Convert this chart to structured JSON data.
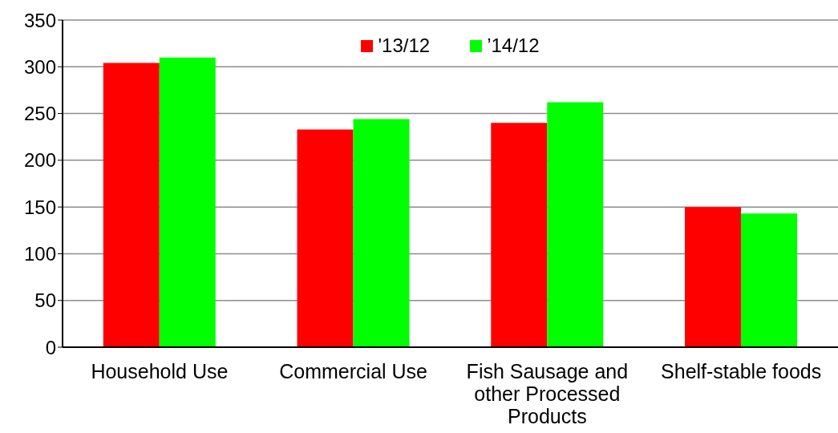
{
  "chart_data": {
    "type": "bar",
    "categories": [
      "Household Use",
      "Commercial Use",
      "Fish Sausage and other Processed Products",
      "Shelf-stable foods"
    ],
    "series": [
      {
        "name": "'13/12",
        "color": "#ff0000",
        "values": [
          304,
          233,
          240,
          150
        ]
      },
      {
        "name": "’14/12",
        "color": "#00ff00",
        "values": [
          310,
          244,
          262,
          143
        ]
      }
    ],
    "ylim": [
      0,
      350
    ],
    "yticks": [
      0,
      50,
      100,
      150,
      200,
      250,
      300,
      350
    ],
    "grid": "y",
    "legend": "top"
  }
}
